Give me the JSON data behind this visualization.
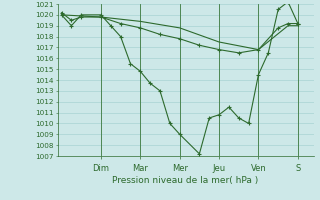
{
  "xlabel": "Pression niveau de la mer( hPa )",
  "ylim": [
    1007,
    1021
  ],
  "yticks": [
    1007,
    1008,
    1009,
    1010,
    1011,
    1012,
    1013,
    1014,
    1015,
    1016,
    1017,
    1018,
    1019,
    1020,
    1021
  ],
  "day_labels": [
    "Dim",
    "Mar",
    "Mer",
    "Jeu",
    "Ven",
    "S"
  ],
  "day_positions": [
    2,
    4,
    6,
    8,
    10,
    12
  ],
  "background_color": "#cde8e8",
  "grid_color": "#a0cece",
  "line_color": "#2d6a2d",
  "figsize": [
    3.2,
    2.0
  ],
  "dpi": 100,
  "line1_x": [
    0.0,
    0.5,
    1.0,
    2.0,
    2.5,
    3.0,
    3.5,
    4.0,
    4.5,
    5.0,
    5.5,
    6.0,
    7.0,
    7.5,
    8.0,
    8.5,
    9.0,
    9.5,
    10.0,
    10.5,
    11.0,
    11.5,
    12.0
  ],
  "line1_y": [
    1020.0,
    1019.0,
    1020.0,
    1020.0,
    1019.0,
    1018.0,
    1015.5,
    1014.8,
    1013.7,
    1013.0,
    1010.0,
    1009.0,
    1007.2,
    1010.5,
    1010.8,
    1011.5,
    1010.5,
    1010.0,
    1014.5,
    1016.5,
    1020.5,
    1021.2,
    1019.2
  ],
  "line2_x": [
    0.0,
    0.5,
    1.0,
    2.0,
    3.0,
    4.0,
    5.0,
    6.0,
    7.0,
    8.0,
    9.0,
    10.0,
    11.0,
    11.5,
    12.0
  ],
  "line2_y": [
    1020.2,
    1019.5,
    1019.8,
    1019.8,
    1019.2,
    1018.8,
    1018.2,
    1017.8,
    1017.2,
    1016.8,
    1016.5,
    1016.8,
    1018.8,
    1019.2,
    1019.2
  ],
  "line3_x": [
    0.0,
    2.0,
    4.0,
    6.0,
    8.0,
    10.0,
    11.5,
    12.0
  ],
  "line3_y": [
    1020.0,
    1019.8,
    1019.4,
    1018.8,
    1017.5,
    1016.8,
    1019.0,
    1019.0
  ]
}
